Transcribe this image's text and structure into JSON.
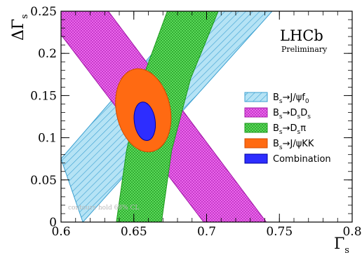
{
  "chart_data": {
    "type": "scatter",
    "xlabel": "Γ",
    "xlabel_sub": "s",
    "ylabel": "ΔΓ",
    "ylabel_sub": "s",
    "xlim": [
      0.6,
      0.8
    ],
    "ylim": [
      0,
      0.25
    ],
    "x_ticks": [
      0.6,
      0.65,
      0.7,
      0.75,
      0.8
    ],
    "x_tick_labels": [
      "0.6",
      "0.65",
      "0.7",
      "0.75",
      "0.8"
    ],
    "y_ticks": [
      0,
      0.05,
      0.1,
      0.15,
      0.2,
      0.25
    ],
    "y_tick_labels": [
      "0",
      "0.05",
      "0.1",
      "0.15",
      "0.2",
      "0.25"
    ],
    "brand": "LHCb",
    "brand_sub": "Preliminary",
    "watermark": "contours hold 68% CL",
    "legend_position": "right",
    "series": [
      {
        "name": "Bs→J/ψf0",
        "label_main": "B",
        "label_sub1": "s",
        "label_mid": "→J/ψf",
        "label_sub2": "0",
        "label_tail": "",
        "color": "#b5e3f5",
        "stroke": "#3a9fd0",
        "shape": "band",
        "polygon": [
          [
            0.6,
            0.075
          ],
          [
            0.615,
            0.0
          ],
          [
            0.745,
            0.25
          ],
          [
            0.688,
            0.25
          ]
        ]
      },
      {
        "name": "Bs→DsDs",
        "label_main": "B",
        "label_sub1": "s",
        "label_mid": "→D",
        "label_sub2": "s",
        "label_tail": "D",
        "label_sub3": "s",
        "color": "#ef6cf0",
        "stroke": "#a017a6",
        "shape": "band",
        "polygon": [
          [
            0.6,
            0.25
          ],
          [
            0.6,
            0.222
          ],
          [
            0.698,
            0.0
          ],
          [
            0.741,
            0.0
          ],
          [
            0.6325,
            0.25
          ]
        ]
      },
      {
        "name": "Bs→Dsπ",
        "label_main": "B",
        "label_sub1": "s",
        "label_mid": "→D",
        "label_sub2": "s",
        "label_tail": "π",
        "color": "#5fe05f",
        "stroke": "#1c9a1c",
        "shape": "band",
        "polygon": [
          [
            0.638,
            0.0
          ],
          [
            0.645,
            0.085
          ],
          [
            0.656,
            0.17
          ],
          [
            0.673,
            0.25
          ],
          [
            0.708,
            0.25
          ],
          [
            0.689,
            0.17
          ],
          [
            0.676,
            0.085
          ],
          [
            0.669,
            0.0
          ]
        ]
      },
      {
        "name": "Bs→J/ψKK",
        "label_main": "B",
        "label_sub1": "s",
        "label_mid": "→J/ψKK",
        "label_sub2": "",
        "label_tail": "",
        "color": "#ff6a12",
        "stroke": "#d04a00",
        "shape": "ellipse",
        "center": [
          0.6565,
          0.1325
        ],
        "semi_axes": [
          0.0185,
          0.05
        ],
        "rotation_deg": -12
      },
      {
        "name": "Combination",
        "label_main": "Combination",
        "color": "#2d2dff",
        "stroke": "#0000a0",
        "shape": "ellipse",
        "center": [
          0.6575,
          0.1195
        ],
        "semi_axes": [
          0.0072,
          0.023
        ],
        "rotation_deg": -8
      }
    ]
  }
}
